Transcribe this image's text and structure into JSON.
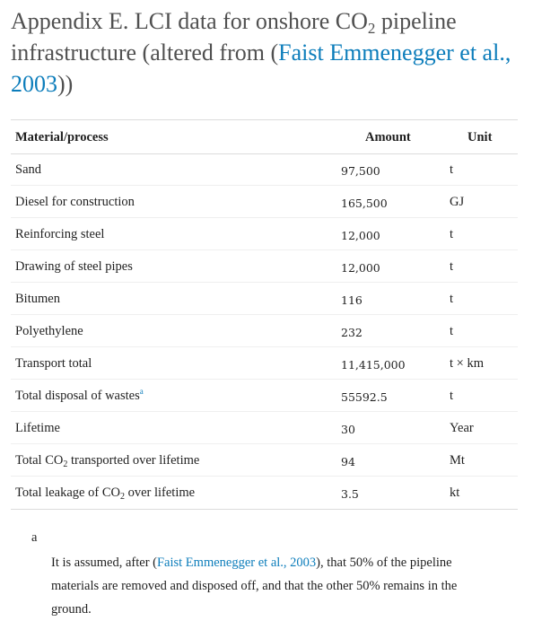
{
  "title": {
    "prefix": "Appendix E. LCI data for onshore CO",
    "sub": "2",
    "middle": " pipeline infrastructure (altered from (",
    "link": "Faist Emmenegger et al., 2003",
    "suffix": "))"
  },
  "table": {
    "headers": {
      "material": "Material/process",
      "amount": "Amount",
      "unit": "Unit"
    },
    "rows": [
      {
        "label": "Sand",
        "amount": "97,500",
        "unit": "t"
      },
      {
        "label": "Diesel for construction",
        "amount": "165,500",
        "unit": "GJ"
      },
      {
        "label": "Reinforcing steel",
        "amount": "12,000",
        "unit": "t"
      },
      {
        "label": "Drawing of steel pipes",
        "amount": "12,000",
        "unit": "t"
      },
      {
        "label": "Bitumen",
        "amount": "116",
        "unit": "t"
      },
      {
        "label": "Polyethylene",
        "amount": "232",
        "unit": "t"
      },
      {
        "label": "Transport total",
        "amount": "11,415,000",
        "unit": "t × km"
      },
      {
        "label": "Total disposal of wastes",
        "label_sup": "a",
        "amount": "55592.5",
        "unit": "t"
      },
      {
        "label": "Lifetime",
        "amount": "30",
        "unit": "Year"
      },
      {
        "label": "Total CO",
        "label_sub": "2",
        "label_rest": " transported over lifetime",
        "amount": "94",
        "unit": "Mt"
      },
      {
        "label": "Total leakage of CO",
        "label_sub": "2",
        "label_rest": " over lifetime",
        "amount": "3.5",
        "unit": "kt"
      }
    ]
  },
  "footnote": {
    "label": "a",
    "text_before": "It is assumed, after (",
    "link": "Faist Emmenegger et al., 2003",
    "text_after": "), that 50% of the pipeline materials are removed and disposed off, and that the other 50% remains in the ground."
  }
}
